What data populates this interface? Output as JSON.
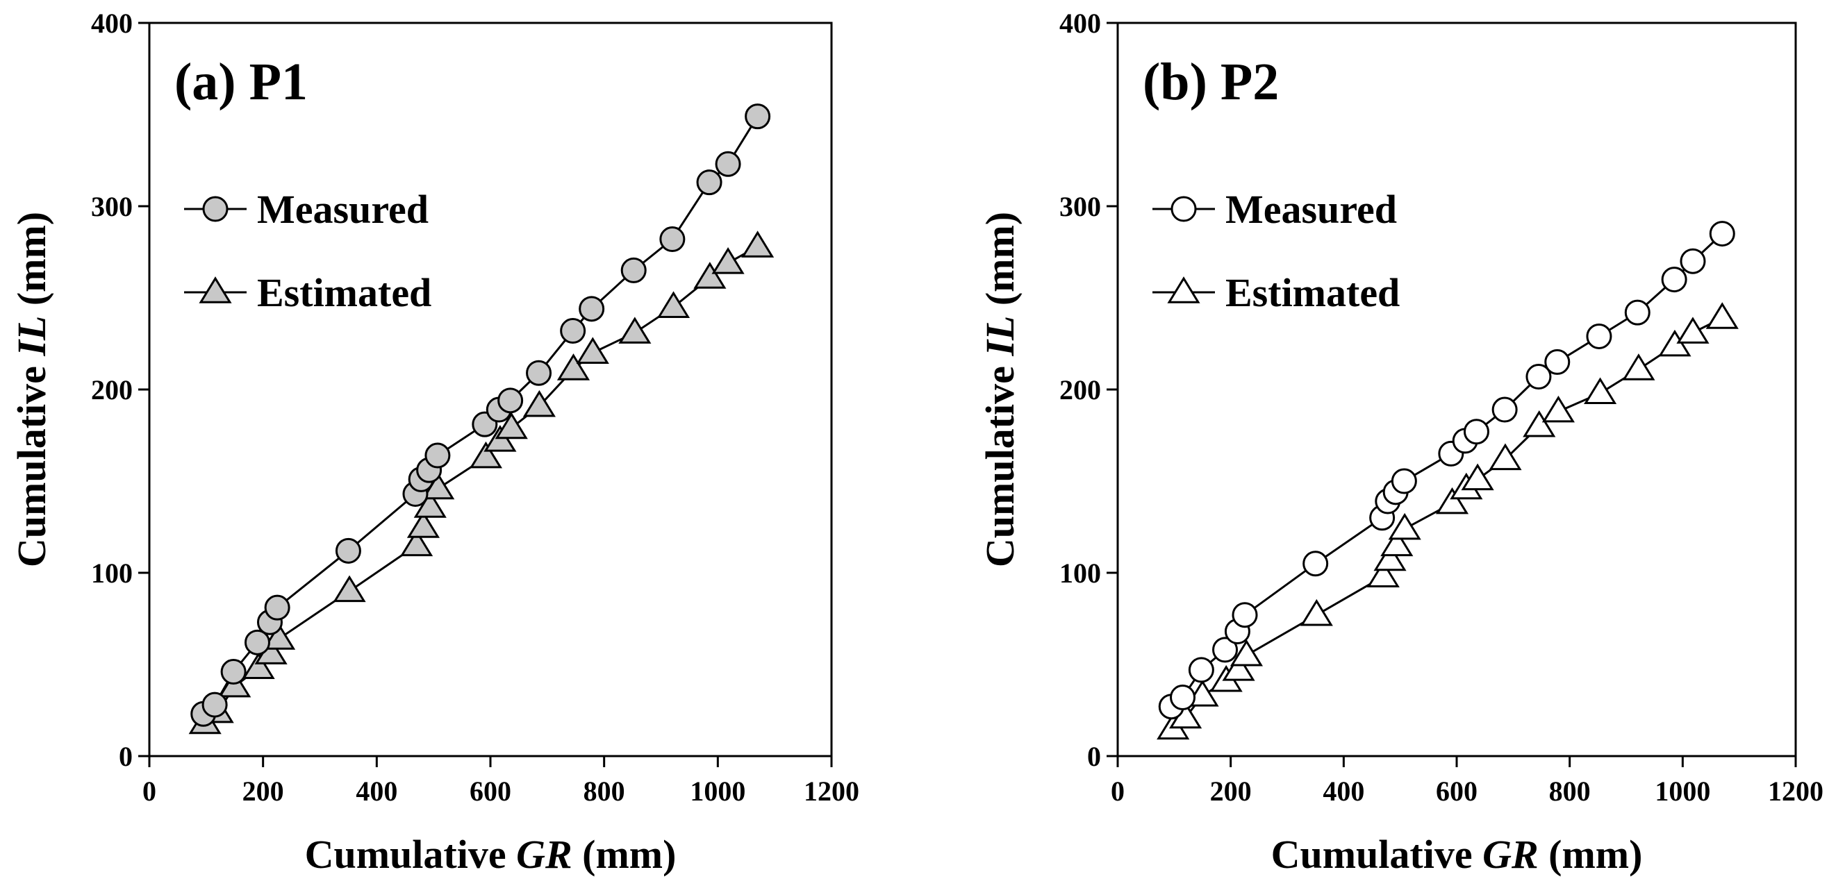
{
  "chart_data": [
    {
      "type": "line",
      "title": "(a) P1",
      "xlabel_prefix": "Cumulative ",
      "xlabel_var": "GR",
      "xlabel_unit": " (mm)",
      "ylabel_prefix": "Cumulative ",
      "ylabel_var": "IL",
      "ylabel_unit": " (mm)",
      "xlim": [
        0,
        1200
      ],
      "ylim": [
        0,
        400
      ],
      "xticks": [
        "0",
        "200",
        "400",
        "600",
        "800",
        "1000",
        "1200"
      ],
      "yticks": [
        "0",
        "100",
        "200",
        "300",
        "400"
      ],
      "grid": false,
      "legend_position": "upper-left",
      "marker_fill": "#c8c8c8",
      "series": [
        {
          "name": "Measured",
          "marker": "circle",
          "x": [
            95,
            115,
            148,
            190,
            212,
            225,
            350,
            468,
            478,
            492,
            507,
            590,
            615,
            635,
            685,
            745,
            778,
            852,
            920,
            985,
            1018,
            1070
          ],
          "y": [
            23,
            28,
            46,
            62,
            73,
            81,
            112,
            143,
            151,
            156,
            164,
            181,
            189,
            194,
            209,
            232,
            244,
            265,
            282,
            313,
            323,
            349
          ]
        },
        {
          "name": "Estimated",
          "marker": "triangle",
          "x": [
            98,
            120,
            150,
            192,
            214,
            228,
            352,
            470,
            482,
            494,
            508,
            592,
            617,
            637,
            686,
            746,
            780,
            854,
            922,
            986,
            1018,
            1070
          ],
          "y": [
            18,
            24,
            38,
            48,
            56,
            64,
            90,
            115,
            125,
            136,
            146,
            163,
            172,
            179,
            191,
            211,
            220,
            231,
            245,
            261,
            269,
            278
          ]
        }
      ]
    },
    {
      "type": "line",
      "title": "(b) P2",
      "xlabel_prefix": "Cumulative ",
      "xlabel_var": "GR",
      "xlabel_unit": " (mm)",
      "ylabel_prefix": "Cumulative ",
      "ylabel_var": "IL",
      "ylabel_unit": " (mm)",
      "xlim": [
        0,
        1200
      ],
      "ylim": [
        0,
        400
      ],
      "xticks": [
        "0",
        "200",
        "400",
        "600",
        "800",
        "1000",
        "1200"
      ],
      "yticks": [
        "0",
        "100",
        "200",
        "300",
        "400"
      ],
      "grid": false,
      "legend_position": "upper-left",
      "marker_fill": "#ffffff",
      "series": [
        {
          "name": "Measured",
          "marker": "circle",
          "x": [
            95,
            115,
            148,
            190,
            212,
            225,
            350,
            468,
            478,
            492,
            507,
            590,
            615,
            635,
            685,
            745,
            778,
            852,
            920,
            985,
            1018,
            1070
          ],
          "y": [
            27,
            32,
            47,
            58,
            68,
            77,
            105,
            130,
            139,
            144,
            150,
            165,
            172,
            177,
            189,
            207,
            215,
            229,
            242,
            260,
            270,
            285
          ]
        },
        {
          "name": "Estimated",
          "marker": "triangle",
          "x": [
            98,
            120,
            150,
            192,
            214,
            228,
            352,
            470,
            482,
            494,
            508,
            592,
            617,
            637,
            686,
            746,
            780,
            854,
            922,
            986,
            1018,
            1070
          ],
          "y": [
            15,
            21,
            33,
            41,
            47,
            55,
            77,
            98,
            107,
            115,
            124,
            138,
            146,
            151,
            162,
            180,
            188,
            198,
            211,
            224,
            231,
            239
          ]
        }
      ]
    }
  ]
}
